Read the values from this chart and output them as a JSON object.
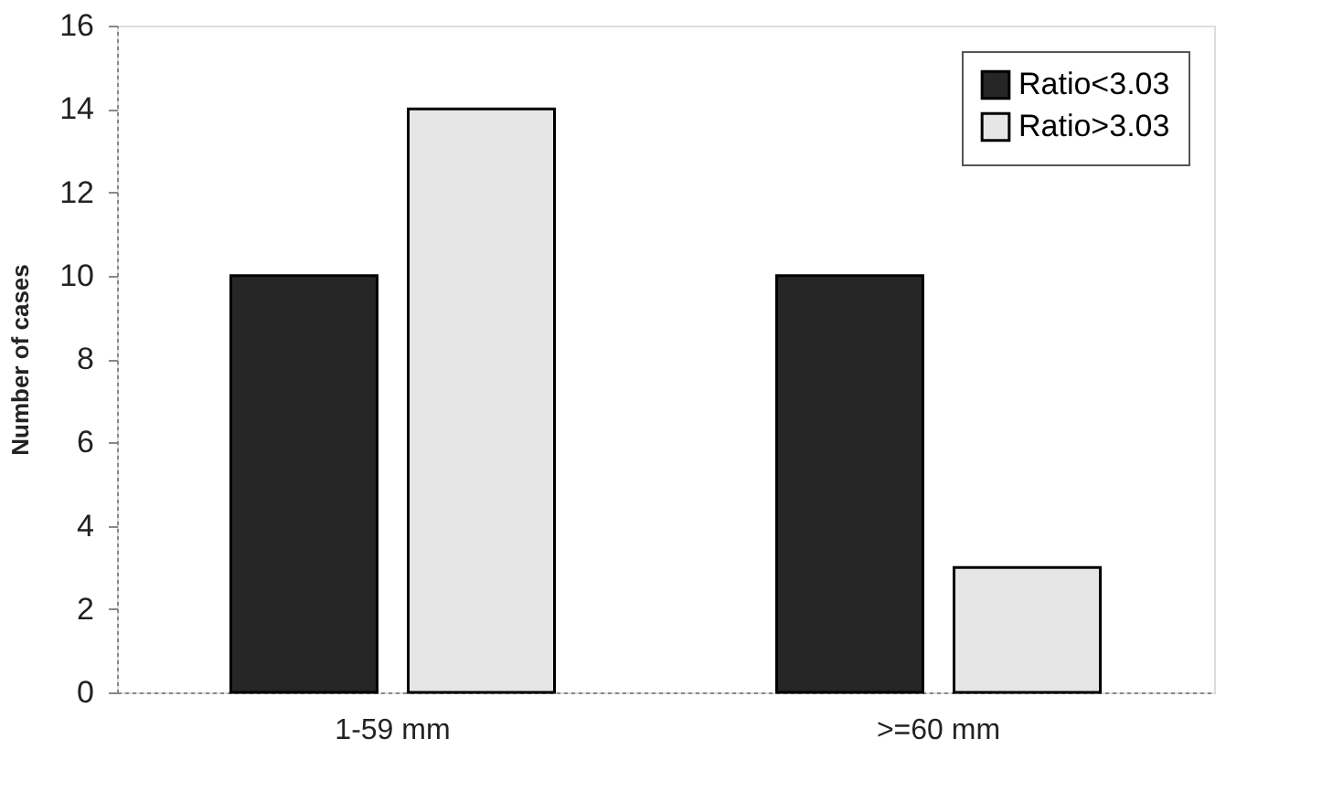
{
  "chart_data": {
    "type": "bar",
    "ylabel": "Number of cases",
    "categories": [
      "1-59 mm",
      ">=60 mm"
    ],
    "series": [
      {
        "name": "Ratio<3.03",
        "color": "#262626",
        "values": [
          10,
          10
        ]
      },
      {
        "name": "Ratio>3.03",
        "color": "#e6e6e6",
        "values": [
          14,
          3
        ]
      }
    ],
    "ylim": [
      0,
      16
    ],
    "yticks": [
      0,
      2,
      4,
      6,
      8,
      10,
      12,
      14,
      16
    ],
    "grid": false,
    "legend": "top right"
  }
}
